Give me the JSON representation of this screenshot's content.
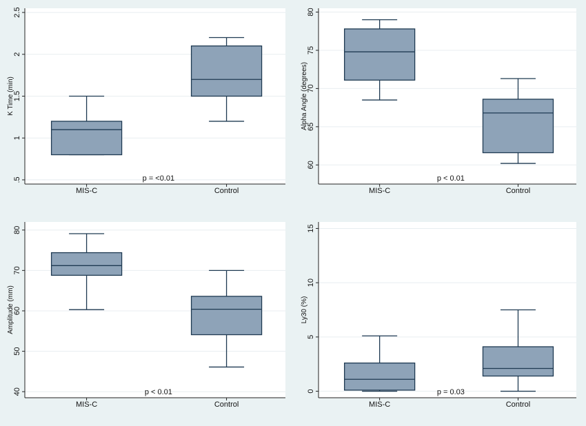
{
  "style": {
    "figure_bg": "#eaf2f3",
    "plot_bg": "#ffffff",
    "box_fill": "#8ea3b8",
    "box_stroke": "#1f3a52",
    "grid": "#e8eef0"
  },
  "chart_data": [
    {
      "type": "box",
      "ylabel": "K Time (min)",
      "categories": [
        "MIS-C",
        "Control"
      ],
      "ylim": [
        0.45,
        2.55
      ],
      "yticks": [
        0.5,
        1,
        1.5,
        2,
        2.5
      ],
      "ytick_labels": [
        ".5",
        "1",
        "1.5",
        "2",
        "2.5"
      ],
      "grid": true,
      "boxes": [
        {
          "min": 0.8,
          "q1": 0.8,
          "median": 1.1,
          "q3": 1.2,
          "max": 1.5
        },
        {
          "min": 1.2,
          "q1": 1.5,
          "median": 1.7,
          "q3": 2.1,
          "max": 2.2
        }
      ],
      "annotation": "p = <0.01"
    },
    {
      "type": "box",
      "ylabel": "Alpha Angle (degrees)",
      "categories": [
        "MIS-C",
        "Control"
      ],
      "ylim": [
        57.5,
        80.5
      ],
      "yticks": [
        60,
        65,
        70,
        75,
        80
      ],
      "ytick_labels": [
        "60",
        "65",
        "70",
        "75",
        "80"
      ],
      "grid": true,
      "boxes": [
        {
          "min": 68.5,
          "q1": 71.1,
          "median": 74.8,
          "q3": 77.8,
          "max": 79.0
        },
        {
          "min": 60.2,
          "q1": 61.6,
          "median": 66.8,
          "q3": 68.6,
          "max": 71.3
        }
      ],
      "annotation": "p < 0.01"
    },
    {
      "type": "box",
      "ylabel": "Amplitude (mm)",
      "categories": [
        "MIS-C",
        "Control"
      ],
      "ylim": [
        38.5,
        82
      ],
      "yticks": [
        40,
        50,
        60,
        70,
        80
      ],
      "ytick_labels": [
        "40",
        "50",
        "60",
        "70",
        "80"
      ],
      "grid": true,
      "boxes": [
        {
          "min": 60.3,
          "q1": 68.8,
          "median": 71.2,
          "q3": 74.4,
          "max": 79.1
        },
        {
          "min": 46.1,
          "q1": 54.1,
          "median": 60.4,
          "q3": 63.6,
          "max": 70.0
        }
      ],
      "annotation": "p < 0.01"
    },
    {
      "type": "box",
      "ylabel": "Ly30 (%)",
      "categories": [
        "MIS-C",
        "Control"
      ],
      "ylim": [
        -0.6,
        15.6
      ],
      "yticks": [
        0,
        5,
        10,
        15
      ],
      "ytick_labels": [
        "0",
        "5",
        "10",
        "15"
      ],
      "grid": true,
      "boxes": [
        {
          "min": 0.0,
          "q1": 0.1,
          "median": 1.1,
          "q3": 2.6,
          "max": 5.1
        },
        {
          "min": 0.0,
          "q1": 1.4,
          "median": 2.1,
          "q3": 4.1,
          "max": 7.5
        }
      ],
      "annotation": "p = 0.03"
    }
  ]
}
